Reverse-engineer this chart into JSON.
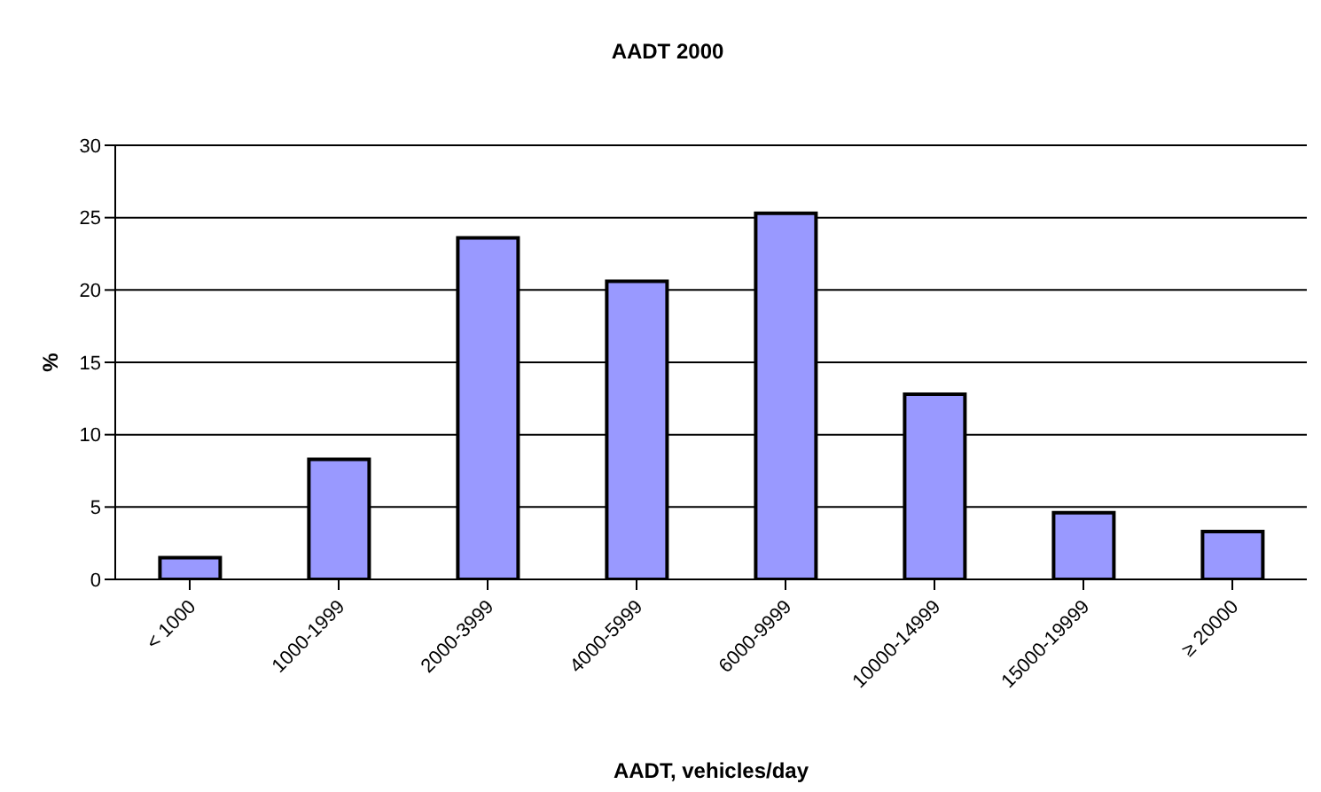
{
  "chart_data": {
    "type": "bar",
    "title": "AADT 2000",
    "xlabel": "AADT, vehicles/day",
    "ylabel": "%",
    "categories": [
      "< 1000",
      "1000-1999",
      "2000-3999",
      "4000-5999",
      "6000-9999",
      "10000-14999",
      "15000-19999",
      "≥ 20000"
    ],
    "values": [
      1.5,
      8.3,
      23.6,
      20.6,
      25.3,
      12.8,
      4.6,
      3.3
    ],
    "color": "#9999ff",
    "ylim": [
      0,
      30
    ],
    "yticks": [
      0,
      5,
      10,
      15,
      20,
      25,
      30
    ],
    "grid": "y"
  }
}
